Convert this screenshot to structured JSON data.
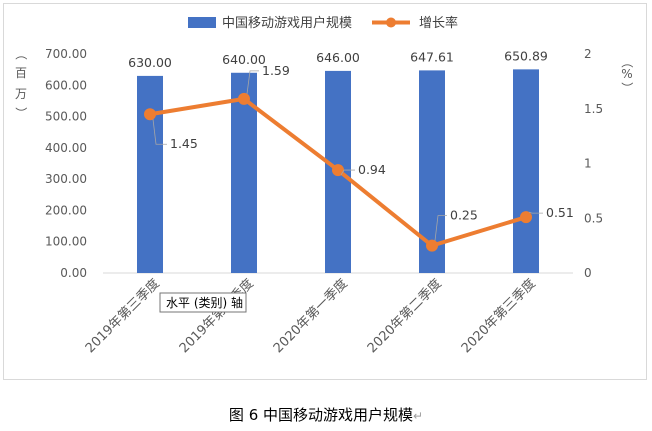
{
  "chart_data": {
    "type": "bar",
    "title": "",
    "categories": [
      "2019年第三季度",
      "2019年第四季度",
      "2020年第一季度",
      "2020年第二季度",
      "2020年第三季度"
    ],
    "series": [
      {
        "name": "中国移动游戏用户规模",
        "type": "bar",
        "axis": "left",
        "values": [
          630.0,
          640.0,
          646.0,
          647.61,
          650.89
        ],
        "labels": [
          "630.00",
          "640.00",
          "646.00",
          "647.61",
          "650.89"
        ],
        "color": "#4472c4"
      },
      {
        "name": "增长率",
        "type": "line",
        "axis": "right",
        "values": [
          1.45,
          1.59,
          0.94,
          0.25,
          0.51
        ],
        "labels": [
          "1.45",
          "1.59",
          "0.94",
          "0.25",
          "0.51"
        ],
        "color": "#ed7d31"
      }
    ],
    "ylabel_left": "（百万）",
    "ylabel_left_chars": [
      "（",
      "百",
      "万",
      "）"
    ],
    "ylabel_right": "（%）",
    "ylabel_right_chars": [
      "（",
      "%",
      "）"
    ],
    "ylim_left": [
      0,
      700
    ],
    "ylim_right": [
      0,
      2
    ],
    "left_ticks": [
      "0.00",
      "100.00",
      "200.00",
      "300.00",
      "400.00",
      "500.00",
      "600.00",
      "700.00"
    ],
    "right_ticks": [
      "0",
      "0.5",
      "1",
      "1.5",
      "2"
    ],
    "legend_position": "top",
    "grid": false,
    "tooltip": "水平 (类别) 轴"
  },
  "caption": {
    "text": "图 6  中国移动游戏用户规模",
    "return_mark": "↵"
  }
}
